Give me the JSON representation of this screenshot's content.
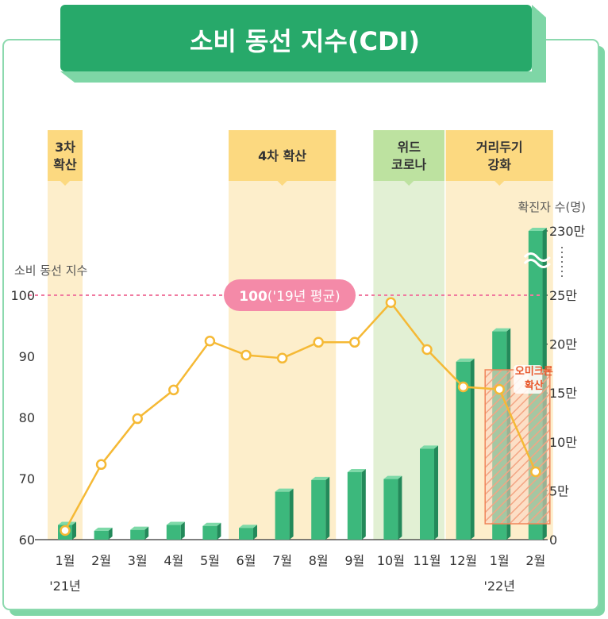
{
  "title": "소비 동선 지수(CDI)",
  "colors": {
    "accent_green": "#27a96a",
    "bar_green": "#3cb87c",
    "line_yellow": "#f5b935",
    "band_yellow": "#fdeecb",
    "band_label_yellow": "#fcd980",
    "band_green": "#e2f0d4",
    "band_label_green": "#bde2a0",
    "ref_pink": "#f07aa0"
  },
  "chart_data": {
    "type": "bar+line",
    "x_labels": [
      "1월",
      "2월",
      "3월",
      "4월",
      "5월",
      "6월",
      "7월",
      "8월",
      "9월",
      "10월",
      "11월",
      "12월",
      "1월",
      "2월"
    ],
    "year_labels": [
      {
        "index": 0,
        "text": "'21년"
      },
      {
        "index": 12,
        "text": "'22년"
      }
    ],
    "left_axis": {
      "label": "소비 동선 지수",
      "min": 60,
      "max": 100,
      "ticks": [
        60,
        70,
        80,
        90,
        100
      ]
    },
    "right_axis": {
      "label": "확진자 수(명)",
      "min": 0,
      "max": 25,
      "unit_value": 10000,
      "ticks": [
        {
          "v": 0,
          "label": "0"
        },
        {
          "v": 5,
          "label": "5만"
        },
        {
          "v": 10,
          "label": "10만"
        },
        {
          "v": 15,
          "label": "15만"
        },
        {
          "v": 20,
          "label": "20만"
        },
        {
          "v": 25,
          "label": "25만"
        }
      ],
      "break_top_label": "230만"
    },
    "cdi_line": [
      61.5,
      72.3,
      79.8,
      84.5,
      92.5,
      90.2,
      89.7,
      92.3,
      92.3,
      98.8,
      91.1,
      85.0,
      84.6,
      71.1
    ],
    "confirmed_bars": [
      1.5,
      0.9,
      1.0,
      1.5,
      1.4,
      1.2,
      4.9,
      6.1,
      6.9,
      6.2,
      9.3,
      18.2,
      21.3,
      31.0
    ],
    "confirmed_bar_break_index": 13,
    "reference": {
      "value": 100,
      "label_bold": "100",
      "label_rest": "('19년 평균)"
    },
    "bands": [
      {
        "label": [
          "3차",
          "확산"
        ],
        "start": 0,
        "end": 0,
        "color": "yellow"
      },
      {
        "label": [
          "4차 확산"
        ],
        "start": 5,
        "end": 7,
        "color": "yellow"
      },
      {
        "label": [
          "위드",
          "코로나"
        ],
        "start": 9,
        "end": 10,
        "color": "green"
      },
      {
        "label": [
          "거리두기",
          "강화"
        ],
        "start": 11,
        "end": 13,
        "color": "yellow"
      }
    ],
    "annotation": {
      "lines": [
        "오미크론",
        "확산"
      ],
      "start": 12,
      "end": 13
    }
  }
}
